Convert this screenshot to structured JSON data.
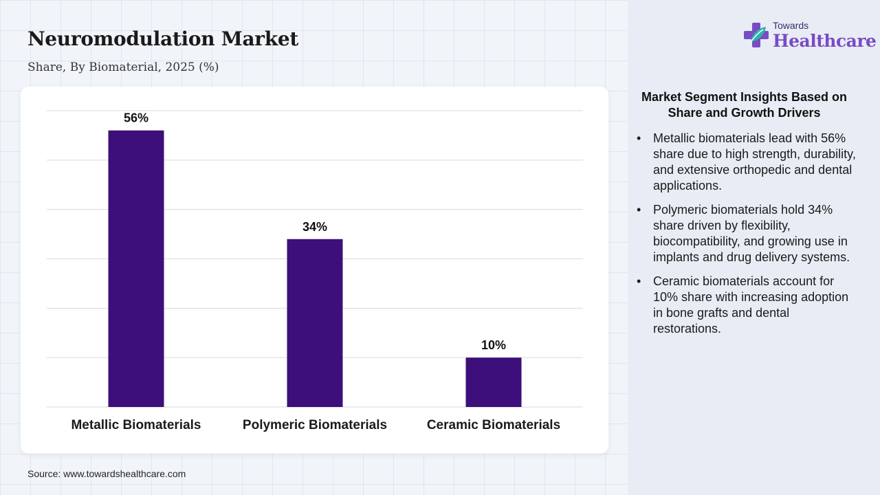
{
  "title": "Neuromodulation Market",
  "subtitle": "Share, By Biomaterial, 2025 (%)",
  "logo": {
    "line1": "Towards",
    "line2": "Healthcare"
  },
  "source": "Source: www.towardshealthcare.com",
  "insights": {
    "heading": "Market Segment Insights Based on Share and Growth Drivers",
    "items": [
      "Metallic biomaterials lead with 56% share due to high strength, durability, and extensive orthopedic and dental applications.",
      "Polymeric biomaterials hold 34% share driven by flexibility, biocompatibility, and growing use in implants and drug delivery systems.",
      "Ceramic biomaterials account for 10% share with increasing adoption in bone grafts and dental restorations."
    ]
  },
  "colors": {
    "bar": "#3d0f7a",
    "grid": "#d9d9d9",
    "logo_purple": "#7b4bc4",
    "logo_teal": "#2bb3a8"
  },
  "chart_data": {
    "type": "bar",
    "categories": [
      "Metallic Biomaterials",
      "Polymeric Biomaterials",
      "Ceramic Biomaterials"
    ],
    "values": [
      56,
      34,
      10
    ],
    "data_labels": [
      "56%",
      "34%",
      "10%"
    ],
    "title": "",
    "xlabel": "",
    "ylabel": "",
    "ylim": [
      0,
      60
    ],
    "grid": true,
    "legend": "none"
  }
}
